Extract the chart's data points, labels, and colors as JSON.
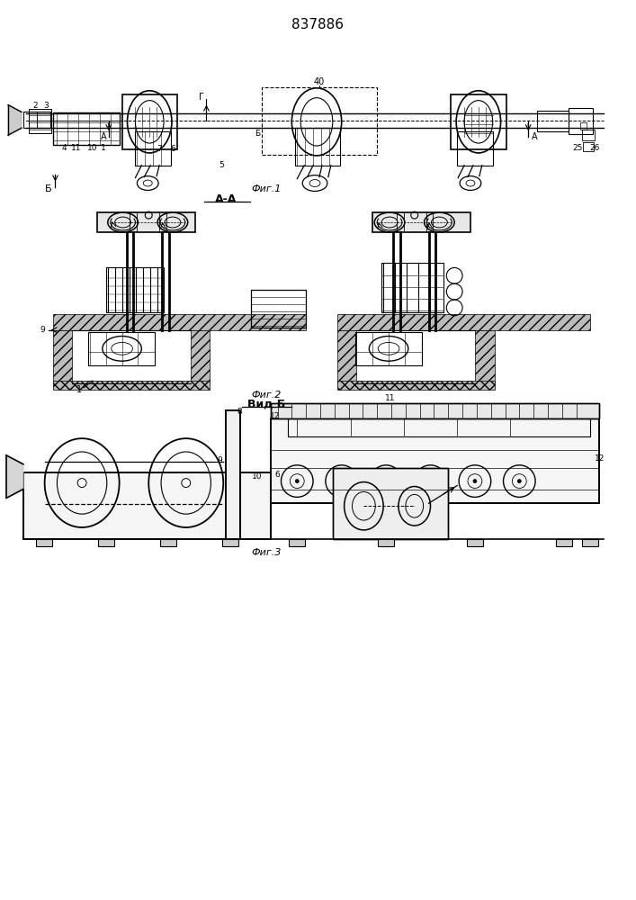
{
  "patent_number": "837886",
  "background_color": "#ffffff",
  "line_color": "#000000",
  "fig_width": 7.07,
  "fig_height": 10.0,
  "fig1_label": "Фиг.1",
  "fig2_label": "Фиг.2",
  "fig3_label": "Фиг.3",
  "section_label_aa": "А-А",
  "section_label_vidb": "Вид Б",
  "section_arrow_b": "Б",
  "section_arrow_a": "А"
}
